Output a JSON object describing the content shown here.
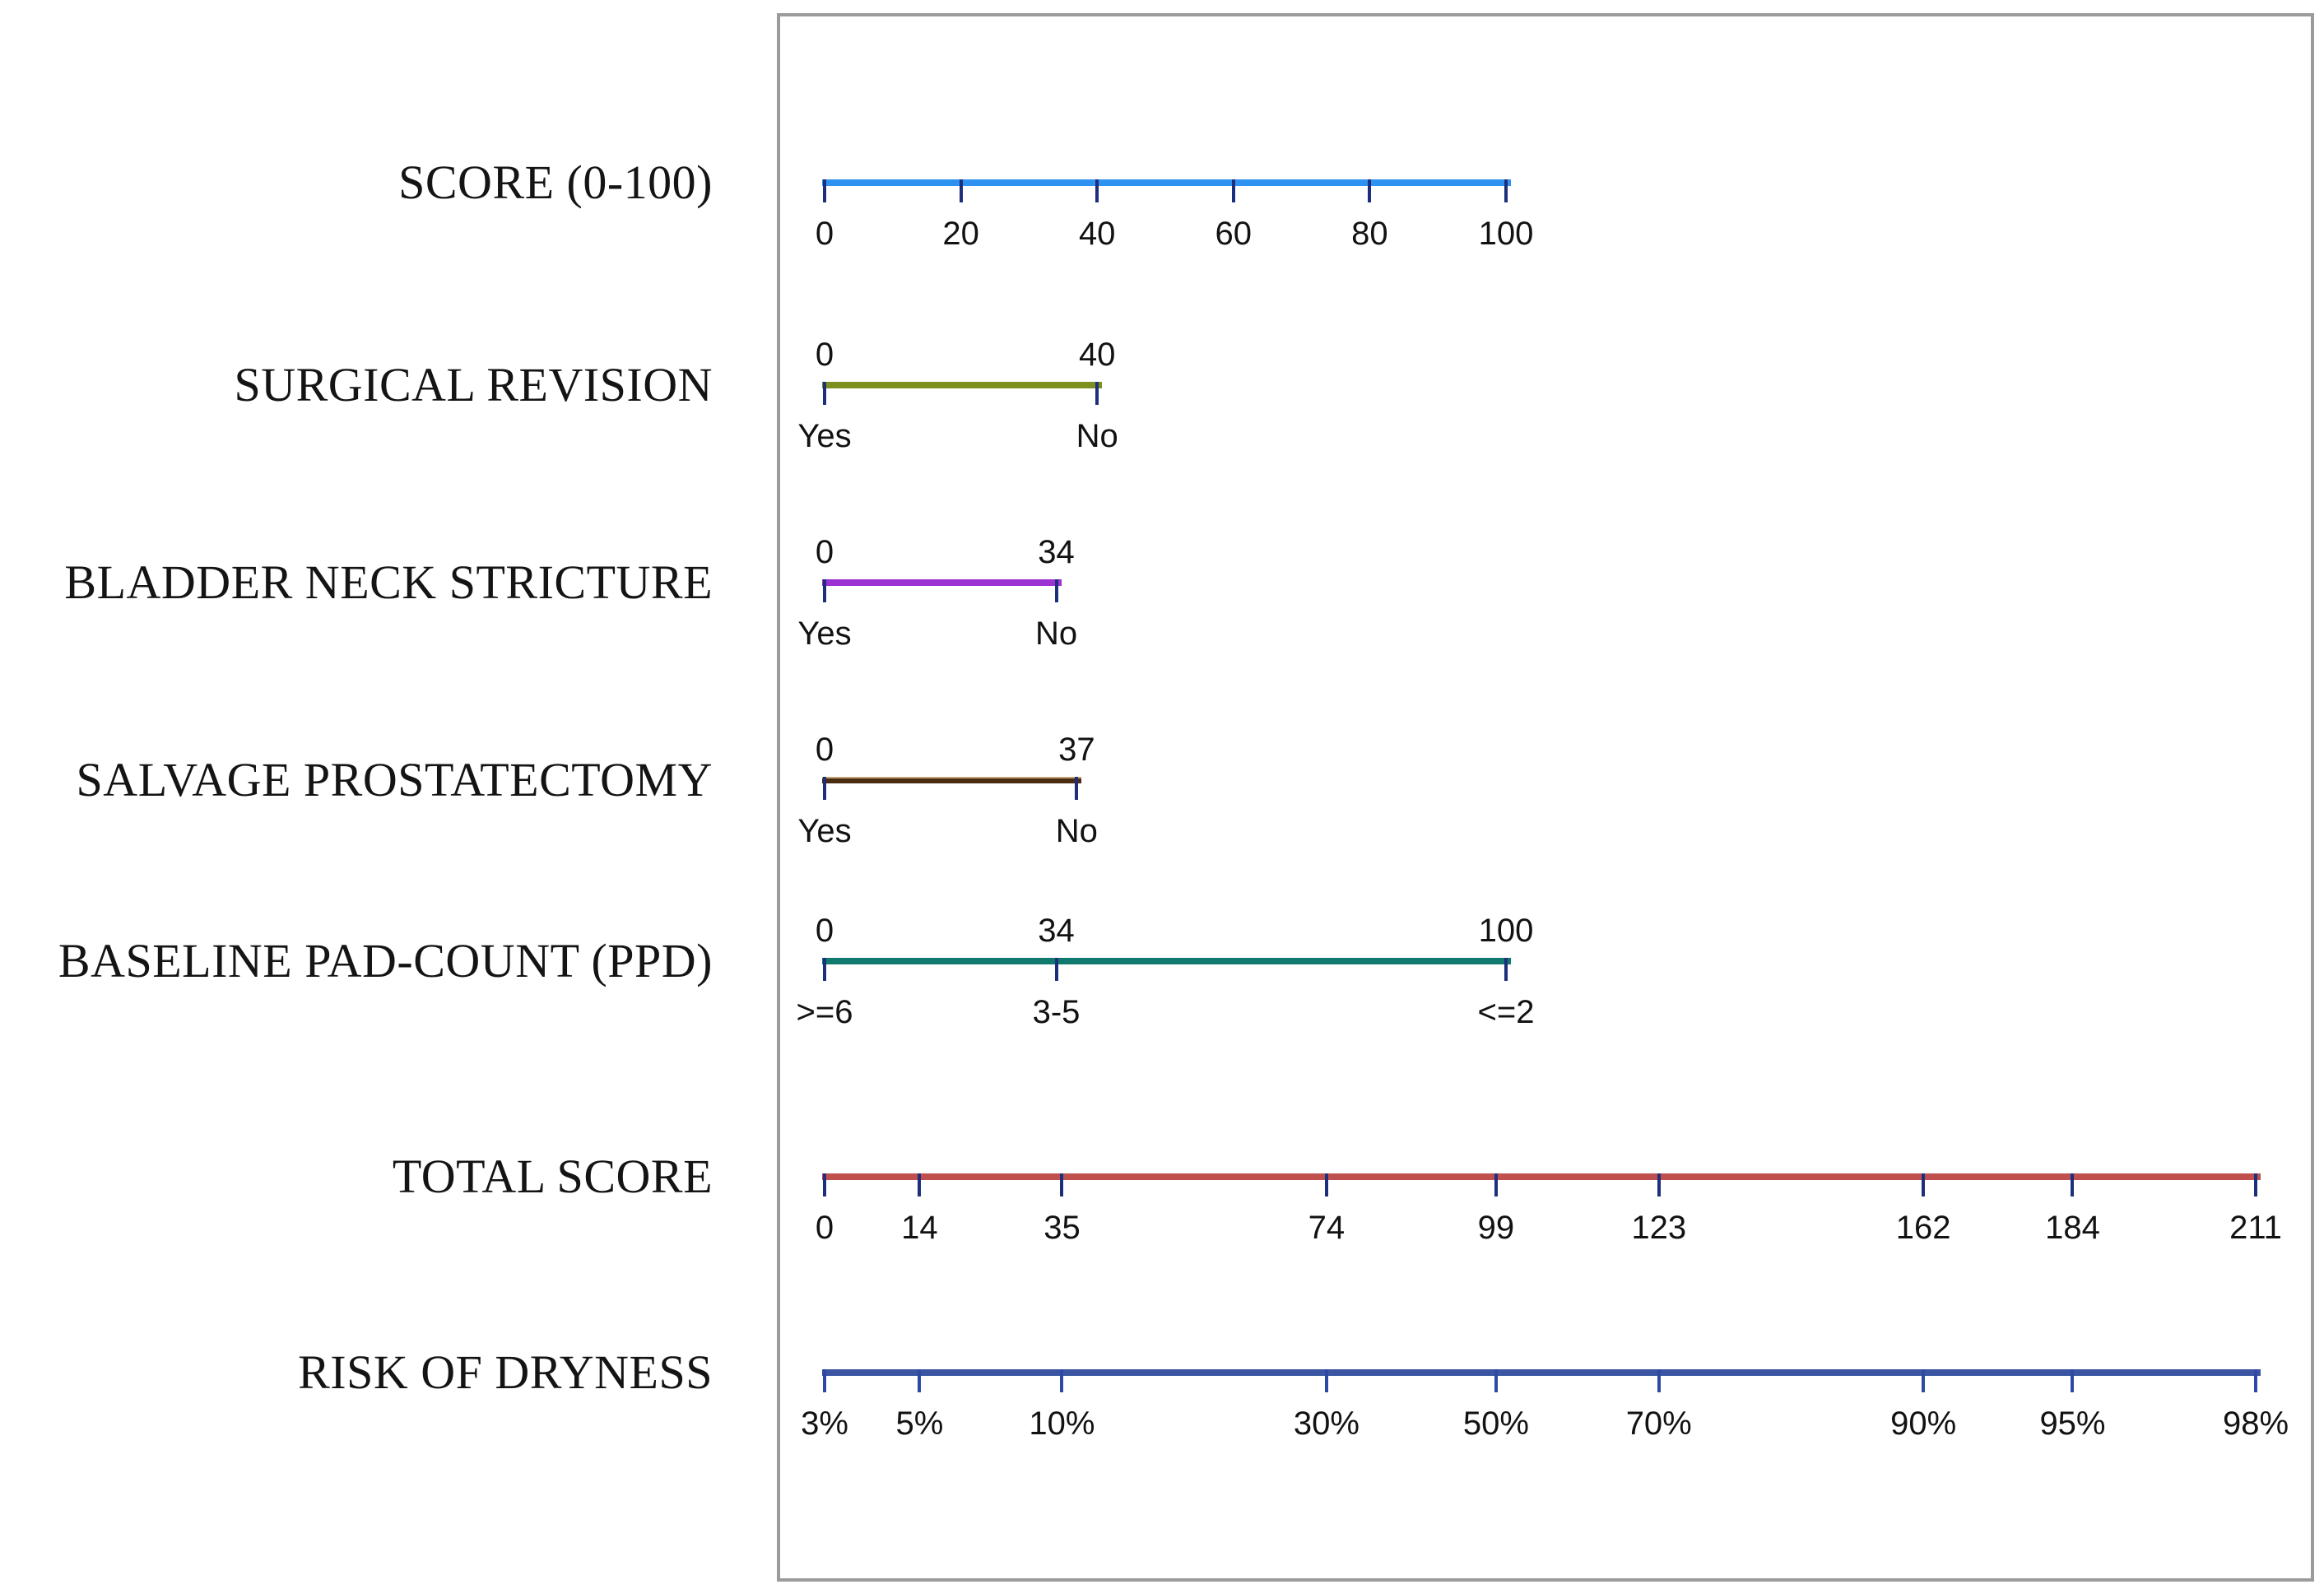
{
  "figure_title": "",
  "chart_data": {
    "type": "nomogram",
    "description": "Nomogram with aligned horizontal point axes; upper axes share a 0-100 points scale, bottom two axes share a 0-211 total-score scale",
    "points_axis_range": [
      0,
      100
    ],
    "total_axis_range": [
      0,
      211
    ],
    "frame_border_color": "#9b9b9b",
    "axes": [
      {
        "id": "score",
        "label": "SCORE (0-100)",
        "scale": "points",
        "range": [
          0,
          100
        ],
        "color": "#2e93f0",
        "tick_color": "#1d2f7c",
        "ticks": [
          {
            "at": 0,
            "bottom": "0"
          },
          {
            "at": 20,
            "bottom": "20"
          },
          {
            "at": 40,
            "bottom": "40"
          },
          {
            "at": 60,
            "bottom": "60"
          },
          {
            "at": 80,
            "bottom": "80"
          },
          {
            "at": 100,
            "bottom": "100"
          }
        ]
      },
      {
        "id": "surgical_revision",
        "label": "SURGICAL REVISION",
        "scale": "points",
        "range": [
          0,
          40
        ],
        "color": "#7d8f1e",
        "tick_color": "#1d2f7c",
        "ticks": [
          {
            "at": 0,
            "top": "0",
            "bottom": "Yes"
          },
          {
            "at": 40,
            "top": "40",
            "bottom": "No"
          }
        ]
      },
      {
        "id": "bladder_neck_stricture",
        "label": "BLADDER NECK STRICTURE",
        "scale": "points",
        "range": [
          0,
          34
        ],
        "color": "#9c31d4",
        "tick_color": "#1d2f7c",
        "ticks": [
          {
            "at": 0,
            "top": "0",
            "bottom": "Yes"
          },
          {
            "at": 34,
            "top": "34",
            "bottom": "No"
          }
        ]
      },
      {
        "id": "salvage_prostatectomy",
        "label": "SALVAGE PROSTATECTOMY",
        "scale": "points",
        "range": [
          0,
          37
        ],
        "color": "#4a2c10",
        "highlight": "#c8a477",
        "tick_color": "#1d2f7c",
        "ticks": [
          {
            "at": 0,
            "top": "0",
            "bottom": "Yes"
          },
          {
            "at": 37,
            "top": "37",
            "bottom": "No"
          }
        ]
      },
      {
        "id": "baseline_pad_count",
        "label": "BASELINE PAD-COUNT (PPD)",
        "scale": "points",
        "range": [
          0,
          100
        ],
        "color": "#107a6e",
        "tick_color": "#1d2f7c",
        "ticks": [
          {
            "at": 0,
            "top": "0",
            "bottom": ">=6"
          },
          {
            "at": 34,
            "top": "34",
            "bottom": "3-5"
          },
          {
            "at": 100,
            "top": "100",
            "bottom": "<=2"
          }
        ]
      },
      {
        "id": "total_score",
        "label": "TOTAL SCORE",
        "scale": "total",
        "range": [
          0,
          211
        ],
        "color": "#c0504d",
        "tick_color": "#1d2f7c",
        "ticks": [
          {
            "at": 0,
            "bottom": "0"
          },
          {
            "at": 14,
            "bottom": "14"
          },
          {
            "at": 35,
            "bottom": "35"
          },
          {
            "at": 74,
            "bottom": "74"
          },
          {
            "at": 99,
            "bottom": "99"
          },
          {
            "at": 123,
            "bottom": "123"
          },
          {
            "at": 162,
            "bottom": "162"
          },
          {
            "at": 184,
            "bottom": "184"
          },
          {
            "at": 211,
            "bottom": "211"
          }
        ]
      },
      {
        "id": "risk_of_dryness",
        "label": "RISK OF DRYNESS",
        "scale": "total",
        "range": [
          0,
          211
        ],
        "color": "#3b55a2",
        "tick_color": "#2e49a5",
        "ticks": [
          {
            "at": 0,
            "bottom": "3%"
          },
          {
            "at": 14,
            "bottom": "5%"
          },
          {
            "at": 35,
            "bottom": "10%"
          },
          {
            "at": 74,
            "bottom": "30%"
          },
          {
            "at": 99,
            "bottom": "50%"
          },
          {
            "at": 123,
            "bottom": "70%"
          },
          {
            "at": 162,
            "bottom": "90%"
          },
          {
            "at": 184,
            "bottom": "95%"
          },
          {
            "at": 211,
            "bottom": "98%"
          }
        ]
      }
    ]
  }
}
